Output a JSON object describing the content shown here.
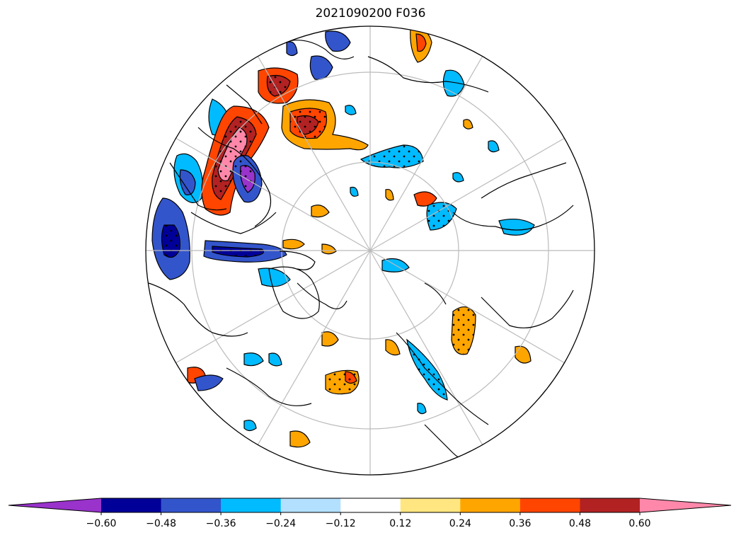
{
  "title": "2021090200 F036",
  "colorbar": {
    "levels": [
      -0.6,
      -0.48,
      -0.36,
      -0.24,
      -0.12,
      0.12,
      0.24,
      0.36,
      0.48,
      0.6
    ],
    "tick_labels": [
      "−0.60",
      "−0.48",
      "−0.36",
      "−0.24",
      "−0.12",
      "0.12",
      "0.24",
      "0.36",
      "0.48",
      "0.60"
    ],
    "colors": [
      "#9933cc",
      "#000099",
      "#3355cc",
      "#00bbff",
      "#b3e0ff",
      "#ffffff",
      "#ffe680",
      "#ffa500",
      "#ff4500",
      "#b22222",
      "#ff88aa"
    ],
    "extend": "both"
  },
  "map": {
    "projection": "north-polar-stereographic",
    "graticule": true,
    "stipple": true
  }
}
